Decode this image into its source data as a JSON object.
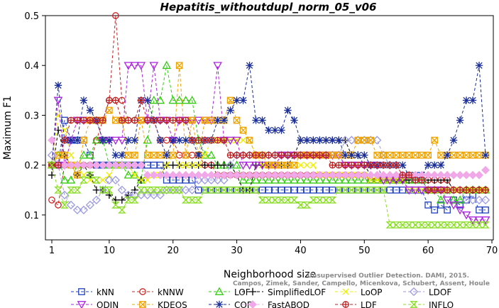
{
  "chart_data": {
    "type": "line",
    "title": "Hepatitis_withoutdupl_norm_05_v06",
    "xlabel": "Neighborhood size",
    "ylabel": "Maximum F1",
    "xlim": [
      1,
      70
    ],
    "ylim": [
      0.05,
      0.5
    ],
    "xticks": [
      "1",
      "10",
      "20",
      "30",
      "40",
      "50",
      "60",
      "70"
    ],
    "yticks": [
      "0.1",
      "0.2",
      "0.3",
      "0.4",
      "0.5"
    ],
    "watermark": [
      "Campos, Zimek, Sander, Campello, Micenkova, Schubert, Assent, Houle",
      "Unsupervised Outlier Detection. DAMI, 2015."
    ],
    "series": [
      {
        "name": "kNN",
        "color": "#1f3fbf",
        "marker": "square",
        "values": [
          0.2,
          0.2,
          0.29,
          0.25,
          0.25,
          0.25,
          0.22,
          0.2,
          0.2,
          0.2,
          0.2,
          0.2,
          0.2,
          0.2,
          0.2,
          0.2,
          0.2,
          0.2,
          0.17,
          0.17,
          0.17,
          0.17,
          0.17,
          0.15,
          0.15,
          0.15,
          0.15,
          0.15,
          0.15,
          0.15,
          0.15,
          0.15,
          0.15,
          0.15,
          0.15,
          0.15,
          0.15,
          0.15,
          0.15,
          0.15,
          0.15,
          0.15,
          0.15,
          0.15,
          0.15,
          0.15,
          0.15,
          0.15,
          0.15,
          0.15,
          0.15,
          0.15,
          0.15,
          0.15,
          0.15,
          0.15,
          0.15,
          0.15,
          0.15,
          0.12,
          0.11,
          0.12,
          0.11,
          0.13,
          0.12,
          0.13,
          0.14,
          0.11,
          0.11
        ]
      },
      {
        "name": "kNNW",
        "color": "#cc2222",
        "marker": "circle",
        "values": [
          0.13,
          0.12,
          0.2,
          0.2,
          0.2,
          0.2,
          0.2,
          0.25,
          0.29,
          0.33,
          0.5,
          0.33,
          0.29,
          0.29,
          0.29,
          0.29,
          0.29,
          0.25,
          0.25,
          0.25,
          0.22,
          0.22,
          0.22,
          0.22,
          0.2,
          0.2,
          0.18,
          0.18,
          0.18,
          0.18,
          0.18,
          0.18,
          0.18,
          0.18,
          0.18,
          0.18,
          0.18,
          0.18,
          0.18,
          0.18,
          0.18,
          0.18,
          0.18,
          0.18,
          0.18,
          0.18,
          0.18,
          0.18,
          0.18,
          0.18,
          0.17,
          0.17,
          0.17,
          0.17,
          0.17,
          0.17,
          0.17,
          0.17,
          0.17,
          0.17,
          0.17,
          0.17,
          0.17,
          0.15,
          0.15,
          0.15,
          0.15,
          0.15,
          0.15
        ]
      },
      {
        "name": "LOF",
        "color": "#33cc11",
        "marker": "triangle",
        "values": [
          0.2,
          0.22,
          0.17,
          0.17,
          0.2,
          0.22,
          0.22,
          0.25,
          0.25,
          0.2,
          0.2,
          0.2,
          0.18,
          0.18,
          0.17,
          0.25,
          0.33,
          0.33,
          0.4,
          0.33,
          0.33,
          0.33,
          0.33,
          0.25,
          0.22,
          0.22,
          0.2,
          0.2,
          0.2,
          0.2,
          0.17,
          0.17,
          0.17,
          0.17,
          0.17,
          0.17,
          0.17,
          0.17,
          0.17,
          0.17,
          0.17,
          0.17,
          0.17,
          0.17,
          0.17,
          0.17,
          0.17,
          0.17,
          0.17,
          0.17,
          0.17,
          0.17,
          0.17,
          0.17,
          0.17,
          0.17,
          0.17,
          0.17,
          0.17,
          0.15,
          0.15,
          0.13,
          0.15,
          0.13,
          0.13,
          0.15,
          0.15,
          0.15,
          0.15
        ]
      },
      {
        "name": "SimplifiedLOF",
        "color": "#000000",
        "marker": "plus",
        "values": [
          0.18,
          0.27,
          0.22,
          0.2,
          0.18,
          0.2,
          0.18,
          0.15,
          0.15,
          0.14,
          0.13,
          0.13,
          0.14,
          0.15,
          0.17,
          0.18,
          0.18,
          0.18,
          0.2,
          0.2,
          0.2,
          0.2,
          0.2,
          0.2,
          0.2,
          0.2,
          0.2,
          0.2,
          0.2,
          0.18,
          0.15,
          0.15,
          0.2,
          0.2,
          0.2,
          0.2,
          0.2,
          0.2,
          0.22,
          0.25,
          0.25,
          0.25,
          0.25,
          0.25,
          0.25,
          0.25,
          0.25,
          0.22,
          0.22,
          0.2,
          0.18,
          0.18,
          0.18,
          0.18,
          0.17,
          0.17,
          0.17,
          0.17,
          0.17,
          0.17,
          0.17,
          0.17,
          0.17,
          0.15,
          0.15,
          0.15,
          0.15,
          0.15,
          0.15
        ]
      },
      {
        "name": "LoOP",
        "color": "#eeee00",
        "marker": "x",
        "values": [
          0.2,
          0.3,
          0.27,
          0.22,
          0.2,
          0.18,
          0.17,
          0.17,
          0.17,
          0.18,
          0.2,
          0.2,
          0.2,
          0.18,
          0.17,
          0.17,
          0.18,
          0.18,
          0.2,
          0.22,
          0.2,
          0.2,
          0.2,
          0.2,
          0.22,
          0.25,
          0.25,
          0.25,
          0.25,
          0.25,
          0.25,
          0.25,
          0.22,
          0.2,
          0.2,
          0.2,
          0.2,
          0.2,
          0.2,
          0.2,
          0.2,
          0.2,
          0.18,
          0.18,
          0.18,
          0.18,
          0.18,
          0.18,
          0.18,
          0.18,
          0.17,
          0.17,
          0.17,
          0.17,
          0.17,
          0.17,
          0.15,
          0.15,
          0.15,
          0.15,
          0.15,
          0.15,
          0.15,
          0.15,
          0.15,
          0.15,
          0.15,
          0.15,
          0.15
        ]
      },
      {
        "name": "LDOF",
        "color": "#9a9ae0",
        "marker": "diamond",
        "values": [
          0.22,
          0.2,
          0.14,
          0.12,
          0.11,
          0.11,
          0.12,
          0.13,
          0.15,
          0.17,
          0.17,
          0.15,
          0.14,
          0.14,
          0.14,
          0.14,
          0.14,
          0.14,
          0.15,
          0.15,
          0.15,
          0.15,
          0.15,
          0.17,
          0.17,
          0.17,
          0.17,
          0.17,
          0.2,
          0.22,
          0.22,
          0.22,
          0.22,
          0.22,
          0.22,
          0.22,
          0.22,
          0.22,
          0.22,
          0.22,
          0.22,
          0.22,
          0.22,
          0.22,
          0.22,
          0.22,
          0.25,
          0.25,
          0.25,
          0.25,
          0.25,
          0.25,
          0.22,
          0.2,
          0.2,
          0.18,
          0.18,
          0.17,
          0.17,
          0.15,
          0.15,
          0.15,
          0.15,
          0.15,
          0.15,
          0.13,
          0.13,
          0.13,
          0.13
        ]
      },
      {
        "name": "ODIN",
        "color": "#aa22dd",
        "marker": "triangle-down",
        "values": [
          0.2,
          0.33,
          0.2,
          0.25,
          0.29,
          0.29,
          0.29,
          0.29,
          0.25,
          0.25,
          0.25,
          0.25,
          0.4,
          0.4,
          0.4,
          0.29,
          0.4,
          0.29,
          0.29,
          0.25,
          0.29,
          0.29,
          0.29,
          0.29,
          0.29,
          0.29,
          0.4,
          0.25,
          0.25,
          0.25,
          0.2,
          0.2,
          0.2,
          0.2,
          0.2,
          0.2,
          0.22,
          0.22,
          0.22,
          0.22,
          0.22,
          0.22,
          0.22,
          0.22,
          0.22,
          0.22,
          0.2,
          0.2,
          0.2,
          0.2,
          0.2,
          0.2,
          0.17,
          0.17,
          0.17,
          0.17,
          0.15,
          0.15,
          0.15,
          0.15,
          0.15,
          0.15,
          0.13,
          0.12,
          0.11,
          0.1,
          0.09,
          0.09,
          0.09
        ]
      },
      {
        "name": "KDEOS",
        "color": "#f0a400",
        "marker": "square-x",
        "values": [
          0.2,
          0.22,
          0.22,
          0.2,
          0.18,
          0.25,
          0.29,
          0.29,
          0.29,
          0.31,
          0.29,
          0.29,
          0.22,
          0.22,
          0.29,
          0.22,
          0.22,
          0.22,
          0.22,
          0.22,
          0.4,
          0.22,
          0.29,
          0.22,
          0.29,
          0.29,
          0.29,
          0.29,
          0.33,
          0.29,
          0.27,
          0.25,
          0.22,
          0.22,
          0.2,
          0.2,
          0.2,
          0.2,
          0.2,
          0.22,
          0.22,
          0.22,
          0.22,
          0.22,
          0.22,
          0.22,
          0.22,
          0.22,
          0.25,
          0.25,
          0.25,
          0.22,
          0.22,
          0.22,
          0.22,
          0.22,
          0.22,
          0.22,
          0.22,
          0.22,
          0.25,
          0.22,
          0.22,
          0.22,
          0.22,
          0.22,
          0.22,
          0.22,
          0.22
        ]
      },
      {
        "name": "COF",
        "color": "#1a2e99",
        "marker": "asterisk",
        "values": [
          0.2,
          0.36,
          0.25,
          0.25,
          0.25,
          0.33,
          0.31,
          0.29,
          0.25,
          0.25,
          0.22,
          0.22,
          0.25,
          0.25,
          0.33,
          0.33,
          0.29,
          0.25,
          0.22,
          0.25,
          0.25,
          0.25,
          0.25,
          0.22,
          0.25,
          0.25,
          0.29,
          0.29,
          0.31,
          0.33,
          0.33,
          0.4,
          0.29,
          0.29,
          0.27,
          0.27,
          0.27,
          0.31,
          0.29,
          0.25,
          0.25,
          0.25,
          0.25,
          0.25,
          0.25,
          0.25,
          0.22,
          0.22,
          0.22,
          0.22,
          0.2,
          0.2,
          0.2,
          0.2,
          0.2,
          0.2,
          0.18,
          0.18,
          0.18,
          0.2,
          0.2,
          0.2,
          0.22,
          0.25,
          0.29,
          0.33,
          0.33,
          0.4,
          0.22
        ]
      },
      {
        "name": "FastABOD",
        "color": "#f0a8e8",
        "marker": "diamond-filled",
        "values": [
          0.25,
          0.2,
          0.2,
          0.2,
          0.2,
          0.2,
          0.2,
          0.2,
          0.2,
          0.2,
          0.2,
          0.2,
          0.2,
          0.2,
          0.2,
          0.18,
          0.18,
          0.18,
          0.18,
          0.18,
          0.18,
          0.18,
          0.18,
          0.18,
          0.18,
          0.18,
          0.18,
          0.18,
          0.18,
          0.18,
          0.18,
          0.18,
          0.18,
          0.18,
          0.18,
          0.18,
          0.18,
          0.18,
          0.18,
          0.18,
          0.18,
          0.18,
          0.18,
          0.18,
          0.18,
          0.18,
          0.18,
          0.18,
          0.18,
          0.18,
          0.18,
          0.18,
          0.18,
          0.18,
          0.18,
          0.18,
          0.18,
          0.18,
          0.18,
          0.18,
          0.18,
          0.18,
          0.18,
          0.18,
          0.18,
          0.18,
          0.18,
          0.18,
          0.19
        ]
      },
      {
        "name": "LDF",
        "color": "#bb2222",
        "marker": "circle-plus",
        "values": [
          0.2,
          0.2,
          0.25,
          0.29,
          0.29,
          0.29,
          0.29,
          0.29,
          0.29,
          0.33,
          0.33,
          0.29,
          0.29,
          0.29,
          0.33,
          0.29,
          0.29,
          0.29,
          0.29,
          0.29,
          0.29,
          0.29,
          0.25,
          0.25,
          0.25,
          0.25,
          0.25,
          0.25,
          0.22,
          0.22,
          0.22,
          0.22,
          0.22,
          0.22,
          0.22,
          0.22,
          0.22,
          0.22,
          0.22,
          0.22,
          0.22,
          0.22,
          0.22,
          0.22,
          0.2,
          0.2,
          0.2,
          0.2,
          0.2,
          0.2,
          0.2,
          0.2,
          0.2,
          0.2,
          0.2,
          0.18,
          0.18,
          0.17,
          0.17,
          0.15,
          0.15,
          0.15,
          0.15,
          0.15,
          0.15,
          0.15,
          0.15,
          0.15,
          0.15
        ]
      },
      {
        "name": "INFLO",
        "color": "#88dd22",
        "marker": "hourglass",
        "values": [
          0.2,
          0.15,
          0.12,
          0.15,
          0.15,
          0.17,
          0.18,
          0.17,
          0.15,
          0.15,
          0.12,
          0.11,
          0.13,
          0.13,
          0.15,
          0.15,
          0.15,
          0.15,
          0.15,
          0.15,
          0.15,
          0.13,
          0.13,
          0.13,
          0.15,
          0.15,
          0.15,
          0.15,
          0.15,
          0.15,
          0.15,
          0.15,
          0.15,
          0.13,
          0.13,
          0.13,
          0.13,
          0.13,
          0.13,
          0.12,
          0.12,
          0.13,
          0.13,
          0.13,
          0.13,
          0.15,
          0.15,
          0.15,
          0.15,
          0.15,
          0.15,
          0.15,
          0.15,
          0.08,
          0.08,
          0.08,
          0.08,
          0.08,
          0.08,
          0.08,
          0.08,
          0.08,
          0.08,
          0.08,
          0.08,
          0.08,
          0.08,
          0.08,
          0.08
        ]
      }
    ],
    "legend_order": [
      "kNN",
      "kNNW",
      "LOF",
      "SimplifiedLOF",
      "LoOP",
      "LDOF",
      "ODIN",
      "KDEOS",
      "COF",
      "FastABOD",
      "LDF",
      "INFLO"
    ],
    "legend_position": "bottom"
  }
}
